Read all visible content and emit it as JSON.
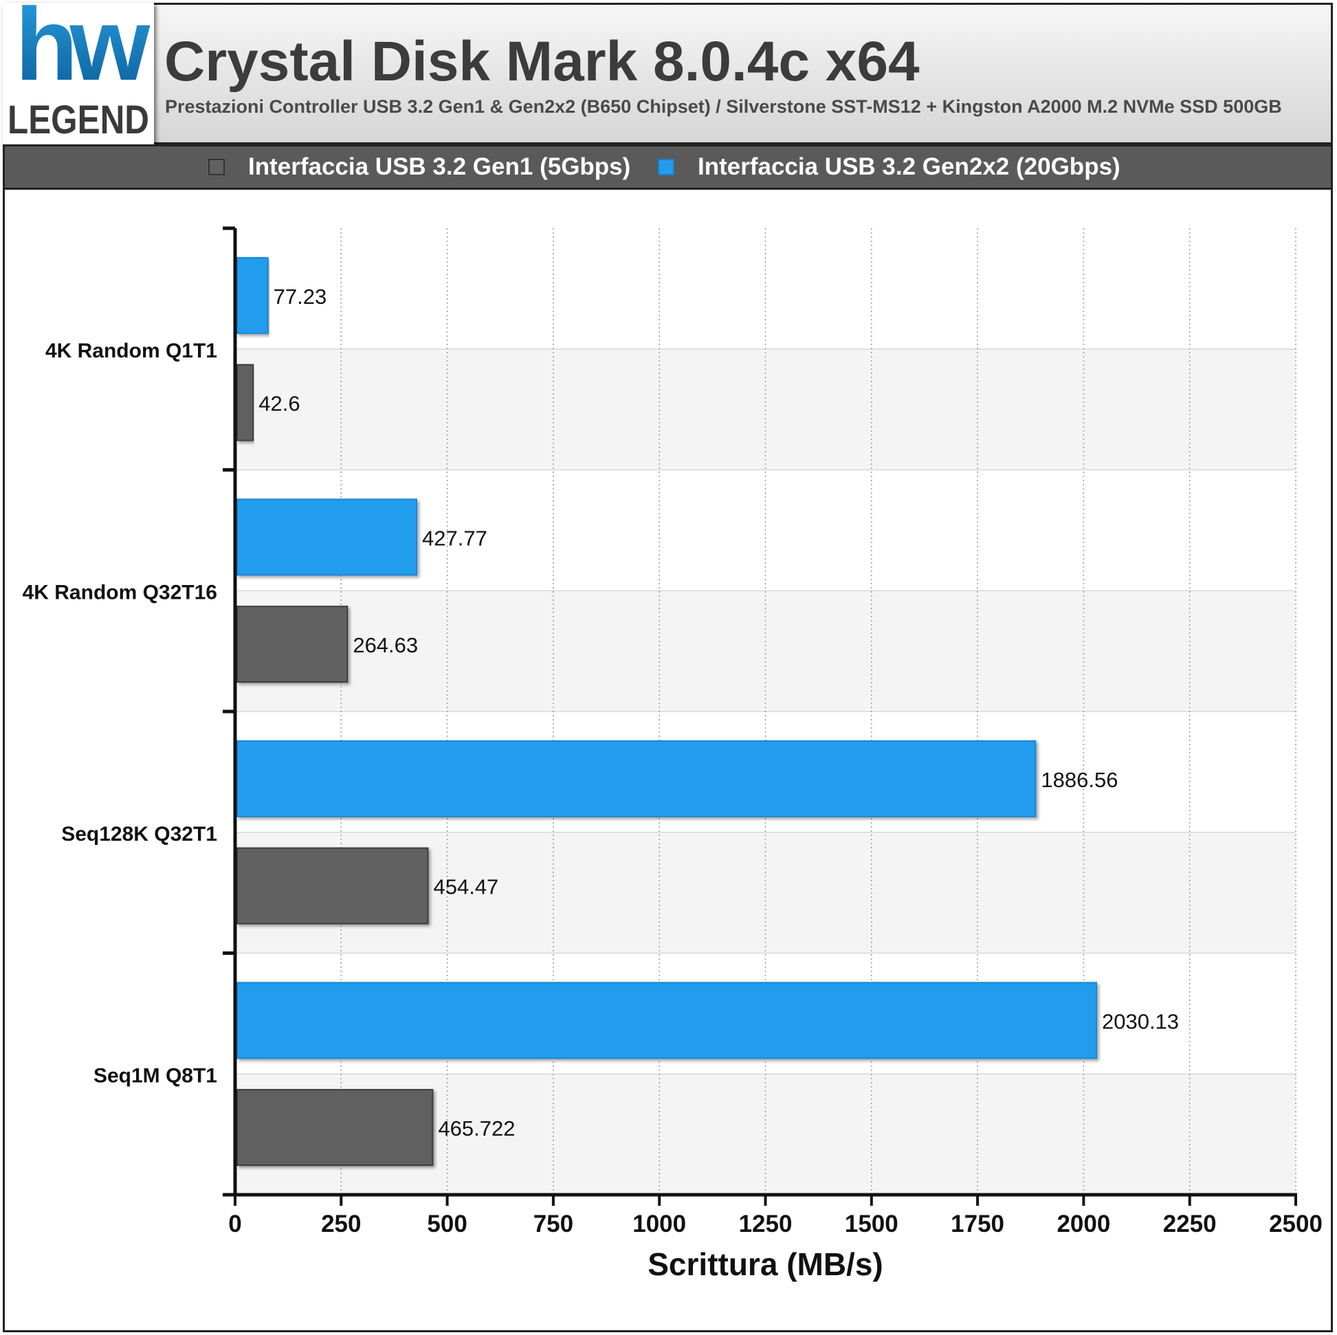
{
  "chart_data": {
    "type": "bar",
    "orientation": "horizontal",
    "title": "Crystal Disk Mark 8.0.4c x64",
    "subtitle": "Prestazioni Controller USB 3.2 Gen1 & Gen2x2 (B650 Chipset) / Silverstone SST-MS12 + Kingston A2000 M.2 NVMe SSD 500GB",
    "xlabel": "Scrittura (MB/s)",
    "ylabel": "",
    "xlim": [
      0,
      2500
    ],
    "xticks": [
      0,
      250,
      500,
      750,
      1000,
      1250,
      1500,
      1750,
      2000,
      2250,
      2500
    ],
    "categories": [
      "4K Random Q1T1",
      "4K Random Q32T16",
      "Seq128K Q32T1",
      "Seq1M Q8T1"
    ],
    "series": [
      {
        "name": "Interfaccia USB 3.2 Gen2x2 (20Gbps)",
        "color": "#229ded",
        "values": [
          77.23,
          427.77,
          1886.56,
          2030.13
        ],
        "labels": [
          "77.23",
          "427.77",
          "1886.56",
          "2030.13"
        ]
      },
      {
        "name": "Interfaccia USB 3.2 Gen1 (5Gbps)",
        "color": "#616161",
        "values": [
          42.6,
          264.63,
          454.47,
          465.722
        ],
        "labels": [
          "42.6",
          "264.63",
          "454.47",
          "465.722"
        ]
      }
    ],
    "grid": true,
    "legend_position": "top"
  },
  "logo": {
    "letters": "hw",
    "word": "LEGEND"
  },
  "colors": {
    "blue": "#229ded",
    "gray": "#616161",
    "header_text": "#3c3c3c"
  }
}
